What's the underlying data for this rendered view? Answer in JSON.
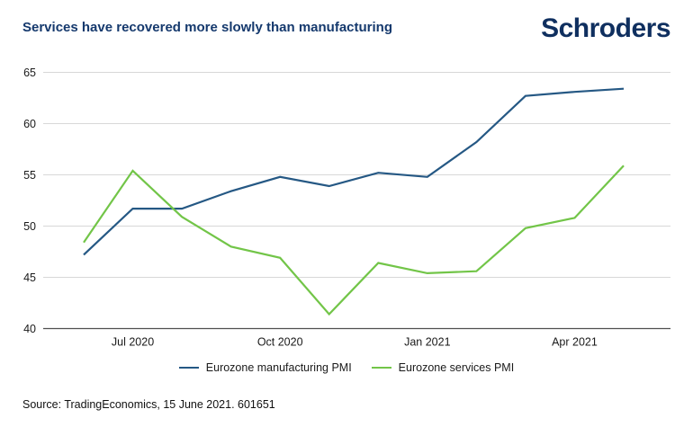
{
  "header": {
    "title": "Services have recovered more slowly than manufacturing",
    "logo_text": "Schroders",
    "title_color": "#15396d",
    "logo_color": "#0f2f5f"
  },
  "chart_data": {
    "type": "line",
    "x": [
      "Jun 2020",
      "Jul 2020",
      "Aug 2020",
      "Sep 2020",
      "Oct 2020",
      "Nov 2020",
      "Dec 2020",
      "Jan 2021",
      "Feb 2021",
      "Mar 2021",
      "Apr 2021",
      "May 2021"
    ],
    "series": [
      {
        "name": "Eurozone manufacturing PMI",
        "color": "#255884",
        "values": [
          47.2,
          51.7,
          51.7,
          53.4,
          54.8,
          53.9,
          55.2,
          54.8,
          58.2,
          62.7,
          63.1,
          63.4
        ]
      },
      {
        "name": "Eurozone services PMI",
        "color": "#72c548",
        "values": [
          48.4,
          55.4,
          50.9,
          48.0,
          46.9,
          41.4,
          46.4,
          45.4,
          45.6,
          49.8,
          50.8,
          55.9
        ]
      }
    ],
    "ylim": [
      40,
      65
    ],
    "yticks": [
      40,
      45,
      50,
      55,
      60,
      65
    ],
    "xticks": [
      {
        "label": "Jul 2020",
        "index": 1
      },
      {
        "label": "Oct 2020",
        "index": 4
      },
      {
        "label": "Jan 2021",
        "index": 7
      },
      {
        "label": "Apr 2021",
        "index": 10
      }
    ],
    "grid": "horizontal",
    "legend_position": "bottom-center",
    "grid_color": "#d8d8d8",
    "axis_color": "#4f4f4f",
    "tick_label_color": "#1a1a1a"
  },
  "footer": {
    "source": "Source: TradingEconomics, 15 June 2021. 601651"
  }
}
